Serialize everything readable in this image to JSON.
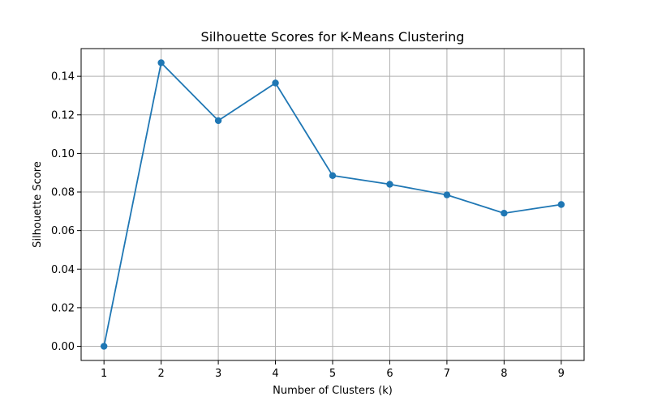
{
  "chart_data": {
    "type": "line",
    "title": "Silhouette Scores for K-Means Clustering",
    "xlabel": "Number of Clusters (k)",
    "ylabel": "Silhouette Score",
    "x": [
      1,
      2,
      3,
      4,
      5,
      6,
      7,
      8,
      9
    ],
    "series": [
      {
        "values": [
          0.0,
          0.147,
          0.117,
          0.1365,
          0.0885,
          0.084,
          0.0785,
          0.069,
          0.0735
        ],
        "color": "#1f77b4",
        "marker": "circle"
      }
    ],
    "xticks": [
      "1",
      "2",
      "3",
      "4",
      "5",
      "6",
      "7",
      "8",
      "9"
    ],
    "yticks": [
      "0.00",
      "0.02",
      "0.04",
      "0.06",
      "0.08",
      "0.10",
      "0.12",
      "0.14"
    ],
    "ytick_values": [
      0.0,
      0.02,
      0.04,
      0.06,
      0.08,
      0.1,
      0.12,
      0.14
    ],
    "xlim": [
      0.6,
      9.4
    ],
    "ylim": [
      -0.00735,
      0.15435
    ],
    "grid": true,
    "grid_color": "#b0b0b0"
  }
}
